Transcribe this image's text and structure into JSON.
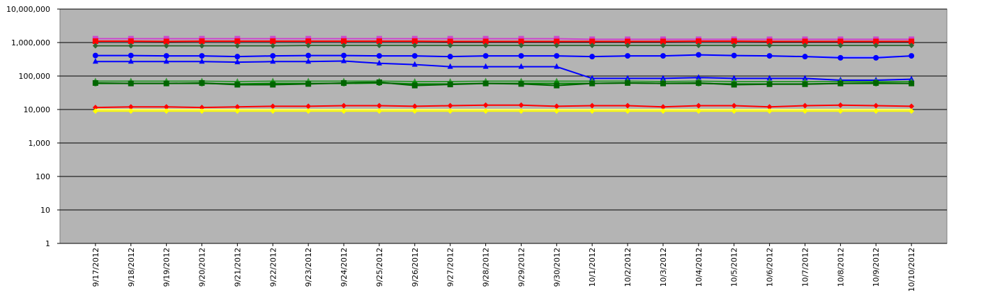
{
  "chart_data": {
    "type": "line",
    "categories": [
      "9/17/2012",
      "9/18/2012",
      "9/19/2012",
      "9/20/2012",
      "9/21/2012",
      "9/22/2012",
      "9/23/2012",
      "9/24/2012",
      "9/25/2012",
      "9/26/2012",
      "9/27/2012",
      "9/28/2012",
      "9/29/2012",
      "9/30/2012",
      "10/1/2012",
      "10/2/2012",
      "10/3/2012",
      "10/4/2012",
      "10/5/2012",
      "10/6/2012",
      "10/7/2012",
      "10/8/2012",
      "10/9/2012",
      "10/10/2012"
    ],
    "log_scale": true,
    "grid": true,
    "ylim": [
      1,
      10000000
    ],
    "yticks": [
      1,
      10,
      100,
      {
        "value": 1000,
        "label": "1,000"
      },
      {
        "value": 10000,
        "label": "10,000"
      },
      {
        "value": 100000,
        "label": "100,000"
      },
      {
        "value": 1000000,
        "label": "1,000,000"
      },
      {
        "value": 10000000,
        "label": "10,000,000"
      }
    ],
    "series": [
      {
        "color": "#cc44cc",
        "marker": "square",
        "values": [
          1300000,
          1300000,
          1300000,
          1300000,
          1300000,
          1300000,
          1300000,
          1300000,
          1300000,
          1300000,
          1300000,
          1300000,
          1300000,
          1300000,
          1250000,
          1250000,
          1250000,
          1250000,
          1250000,
          1250000,
          1250000,
          1250000,
          1250000,
          1250000
        ]
      },
      {
        "color": "#ff0000",
        "marker": "square",
        "values": [
          1100000,
          1100000,
          1080000,
          1100000,
          1100000,
          1100000,
          1100000,
          1100000,
          1100000,
          1100000,
          1080000,
          1080000,
          1080000,
          1080000,
          1080000,
          1080000,
          1080000,
          1100000,
          1100000,
          1080000,
          1080000,
          1080000,
          1080000,
          1080000
        ]
      },
      {
        "color": "#336633",
        "marker": "diamond",
        "values": [
          800000,
          800000,
          800000,
          800000,
          800000,
          800000,
          820000,
          820000,
          820000,
          820000,
          820000,
          820000,
          820000,
          820000,
          820000,
          820000,
          820000,
          820000,
          820000,
          820000,
          820000,
          820000,
          820000,
          820000
        ]
      },
      {
        "color": "#9999ff",
        "marker": "none",
        "values": [
          400000,
          400000,
          390000,
          390000,
          380000,
          390000,
          400000,
          400000,
          390000,
          390000,
          380000,
          390000,
          390000,
          390000,
          380000,
          390000,
          390000,
          410000,
          400000,
          390000,
          380000,
          380000,
          380000,
          390000
        ]
      },
      {
        "color": "#0000ff",
        "marker": "circle",
        "values": [
          410000,
          410000,
          400000,
          400000,
          380000,
          400000,
          410000,
          410000,
          400000,
          400000,
          380000,
          400000,
          400000,
          400000,
          380000,
          400000,
          400000,
          430000,
          410000,
          400000,
          380000,
          350000,
          350000,
          400000
        ]
      },
      {
        "color": "#0000ff",
        "marker": "triangle",
        "values": [
          270000,
          270000,
          270000,
          270000,
          260000,
          270000,
          270000,
          280000,
          240000,
          220000,
          190000,
          190000,
          190000,
          190000,
          85000,
          85000,
          85000,
          90000,
          85000,
          85000,
          85000,
          75000,
          75000,
          80000
        ]
      },
      {
        "color": "#339933",
        "marker": "triangle",
        "values": [
          70000,
          70000,
          70000,
          70000,
          68000,
          70000,
          70000,
          70000,
          70000,
          68000,
          68000,
          70000,
          70000,
          70000,
          70000,
          70000,
          68000,
          70000,
          68000,
          68000,
          68000,
          68000,
          68000,
          68000
        ]
      },
      {
        "color": "#008800",
        "marker": "circle",
        "values": [
          60000,
          60000,
          60000,
          60000,
          58000,
          60000,
          60000,
          60000,
          62000,
          58000,
          58000,
          60000,
          60000,
          60000,
          60000,
          62000,
          60000,
          60000,
          58000,
          58000,
          58000,
          60000,
          60000,
          60000
        ]
      },
      {
        "color": "#006600",
        "marker": "square",
        "values": [
          62000,
          60000,
          60000,
          62000,
          55000,
          55000,
          58000,
          62000,
          65000,
          52000,
          56000,
          60000,
          58000,
          52000,
          60000,
          62000,
          60000,
          62000,
          55000,
          57000,
          57000,
          60000,
          62000,
          60000
        ]
      },
      {
        "color": "#ff0000",
        "marker": "diamond",
        "values": [
          11500,
          12000,
          12000,
          11500,
          12000,
          12500,
          12500,
          13000,
          13000,
          12500,
          13000,
          13500,
          13500,
          12500,
          13000,
          13000,
          12000,
          13000,
          13000,
          12000,
          13000,
          13500,
          13000,
          12500
        ]
      },
      {
        "color": "#ffff66",
        "marker": "none",
        "values": [
          10000,
          10000,
          10000,
          10000,
          10000,
          10000,
          10000,
          10000,
          10000,
          10000,
          10000,
          10000,
          10000,
          10000,
          10000,
          10000,
          10000,
          10000,
          10000,
          10000,
          10000,
          10000,
          10000,
          10000
        ]
      },
      {
        "color": "#ffff00",
        "marker": "diamond",
        "values": [
          9000,
          9000,
          9000,
          9000,
          9000,
          9000,
          9000,
          9000,
          9000,
          9000,
          9000,
          9000,
          9000,
          9000,
          9000,
          9000,
          9000,
          9000,
          9000,
          9000,
          9000,
          9000,
          9000,
          9000
        ]
      }
    ]
  }
}
